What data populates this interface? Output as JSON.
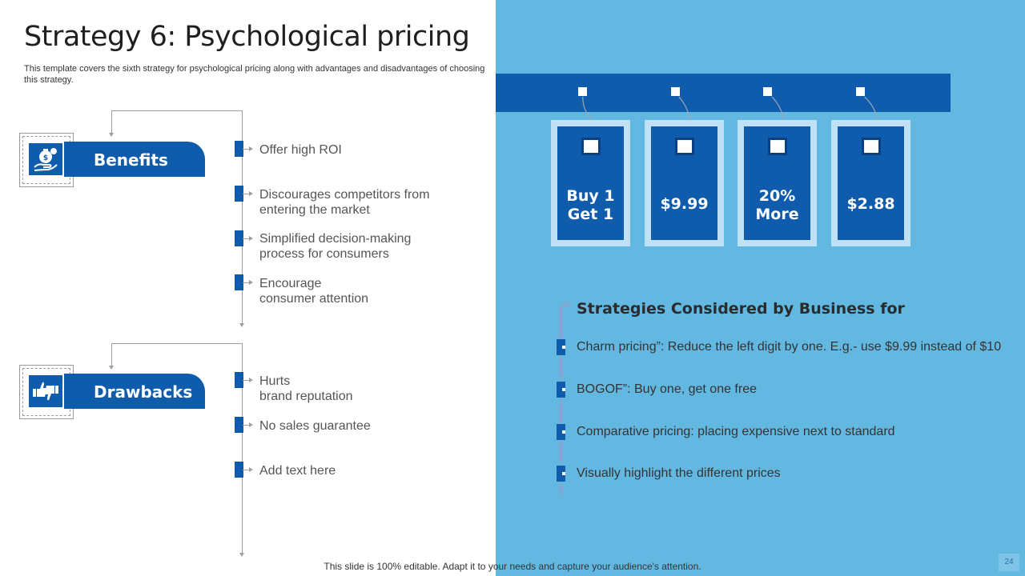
{
  "slide": {
    "title": "Strategy 6: Psychological pricing",
    "subtitle": "This template covers the sixth strategy for psychological pricing along with advantages and disadvantages of choosing this strategy."
  },
  "benefits": {
    "label": "Benefits",
    "icon": "money-bag-hand-icon",
    "items": [
      "Offer high ROI",
      "Discourages competitors from\nentering the market",
      "Simplified decision-making\nprocess for consumers",
      "Encourage\nconsumer attention"
    ]
  },
  "drawbacks": {
    "label": "Drawbacks",
    "icon": "thumbs-up-down-icon",
    "items": [
      "Hurts\n brand reputation",
      "No sales guarantee",
      "Add text here"
    ]
  },
  "price_tags": [
    "Buy 1\n Get 1",
    "$9.99",
    "20%\nMore",
    "$2.88"
  ],
  "strategies": {
    "title": "Strategies  Considered  by Business for",
    "items": [
      "Charm pricing”: Reduce the left digit by one. E.g.- use $9.99 instead of $10",
      "BOGOF”: Buy one, get one free",
      "Comparative pricing: placing expensive next to standard",
      "Visually highlight the different prices"
    ]
  },
  "footer": {
    "text": "This slide is 100% editable. Adapt it to your needs and capture your audience's attention.",
    "page_number": "24"
  },
  "colors": {
    "primary_blue": "#0f5cad",
    "panel_blue": "#63b8e2",
    "tag_border": "#bfe0f5"
  }
}
